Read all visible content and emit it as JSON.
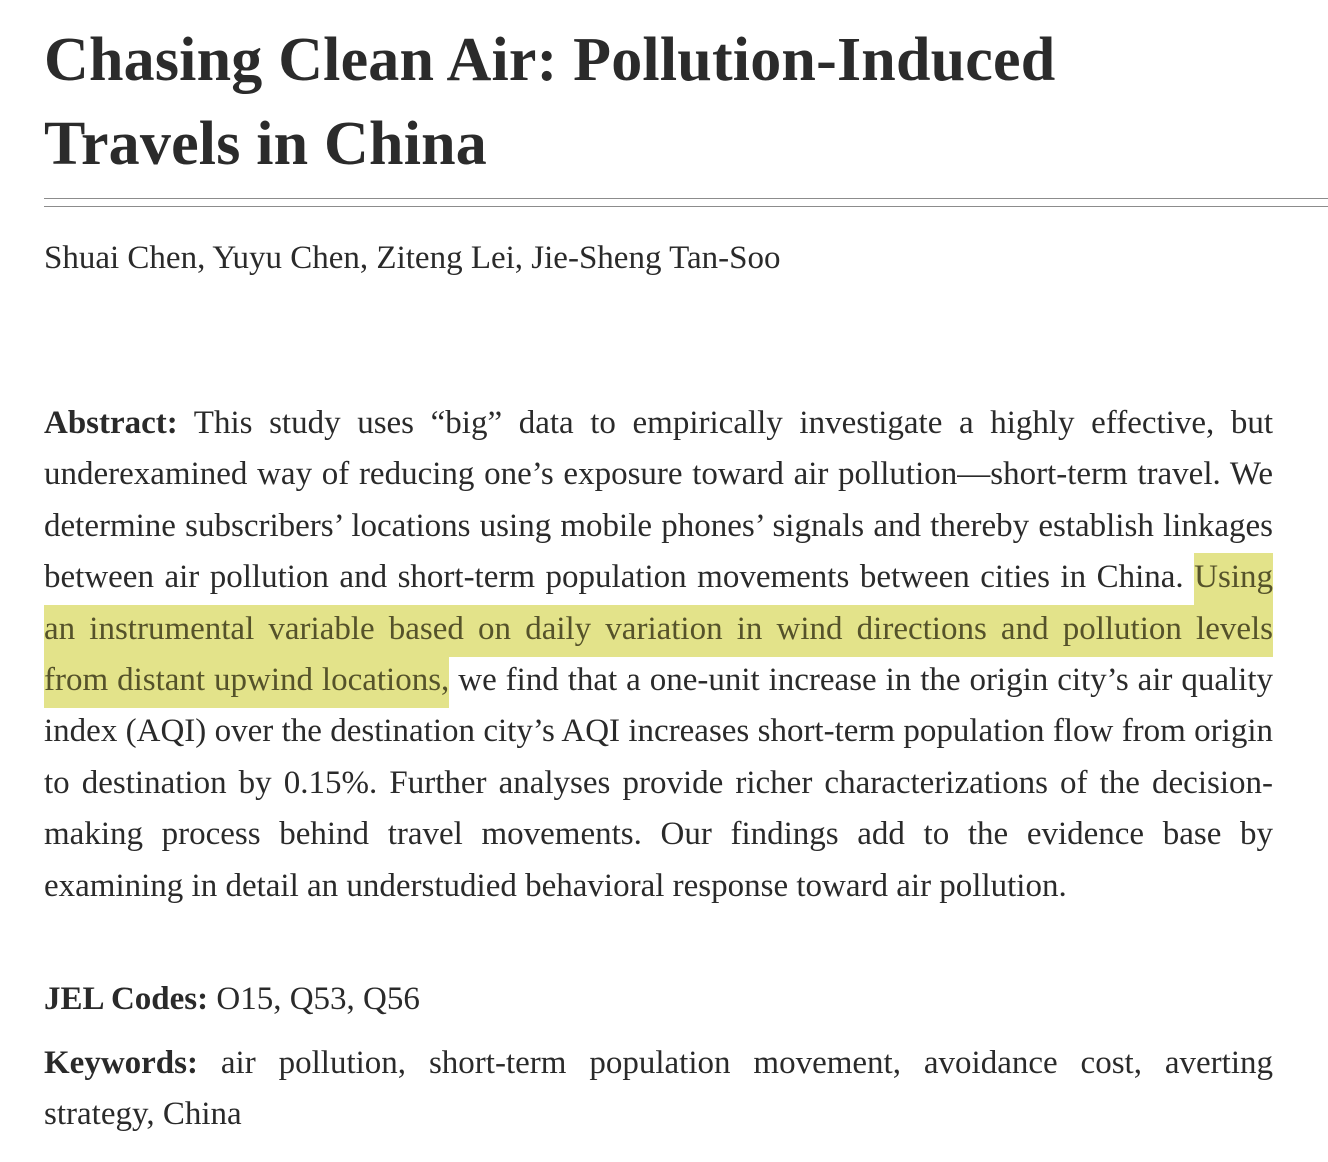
{
  "title": "Chasing Clean Air: Pollution-Induced Travels in China",
  "authors": "Shuai Chen, Yuyu Chen, Ziteng Lei, Jie-Sheng Tan-Soo",
  "abstract": {
    "label": "Abstract:",
    "text_before": " This study uses “big” data to empirically investigate a highly effective, but underexamined way of reducing one’s exposure toward air pollution—short-term travel. We determine subscribers’ locations using mobile phones’ signals and thereby establish linkages between air pollution and short-term population movements be­tween cities in China. ",
    "highlighted": "Using an instrumental variable based on daily variation in wind directions and pollution levels from distant upwind locations,",
    "text_after": " we find that a one-unit increase in the origin city’s air quality index (AQI) over the destination city’s AQI increases short-term population flow from origin to destination by 0.15%. Further analyses provide richer characterizations of the decision-making process behind travel movements. Our findings add to the evidence base by examining in detail an under­studied behavioral response toward air pollution."
  },
  "jel": {
    "label": "JEL Codes:",
    "value": " O15, Q53, Q56"
  },
  "keywords": {
    "label": "Keywords:",
    "value": " air pollution, short-term population movement, avoidance cost, averting strategy, China"
  },
  "colors": {
    "highlight": "#e3e38a",
    "text": "#2a2a2a",
    "rule": "#8c8c8c"
  }
}
